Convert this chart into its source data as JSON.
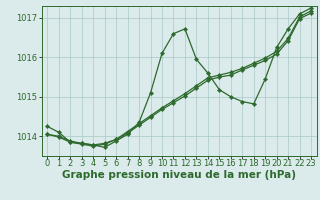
{
  "background_color": "#dbeaea",
  "grid_color": "#aac8c8",
  "line_color": "#2d6a2d",
  "marker_color": "#2d6a2d",
  "xlabel": "Graphe pression niveau de la mer (hPa)",
  "xlabel_fontsize": 7.5,
  "tick_fontsize": 6,
  "xlim": [
    -0.5,
    23.5
  ],
  "ylim": [
    1013.5,
    1017.3
  ],
  "yticks": [
    1014,
    1015,
    1016,
    1017
  ],
  "xticks": [
    0,
    1,
    2,
    3,
    4,
    5,
    6,
    7,
    8,
    9,
    10,
    11,
    12,
    13,
    14,
    15,
    16,
    17,
    18,
    19,
    20,
    21,
    22,
    23
  ],
  "series_wavy": {
    "x": [
      0,
      1,
      2,
      3,
      4,
      5,
      6,
      7,
      8,
      9,
      10,
      11,
      12,
      13,
      14,
      15,
      16,
      17,
      18,
      19,
      20,
      21,
      22,
      23
    ],
    "y": [
      1014.25,
      1014.1,
      1013.85,
      1013.82,
      1013.78,
      1013.72,
      1013.88,
      1014.05,
      1014.35,
      1015.1,
      1016.1,
      1016.6,
      1016.72,
      1015.95,
      1015.6,
      1015.18,
      1015.0,
      1014.88,
      1014.82,
      1015.45,
      1016.25,
      1016.72,
      1017.1,
      1017.25
    ]
  },
  "series_linear1": {
    "x": [
      0,
      1,
      2,
      3,
      4,
      5,
      6,
      7,
      8,
      9,
      10,
      11,
      12,
      13,
      14,
      15,
      16,
      17,
      18,
      19,
      20,
      21,
      22,
      23
    ],
    "y": [
      1014.05,
      1014.0,
      1013.88,
      1013.82,
      1013.78,
      1013.82,
      1013.92,
      1014.12,
      1014.32,
      1014.52,
      1014.72,
      1014.9,
      1015.08,
      1015.28,
      1015.48,
      1015.55,
      1015.62,
      1015.72,
      1015.85,
      1015.98,
      1016.15,
      1016.48,
      1017.02,
      1017.18
    ]
  },
  "series_linear2": {
    "x": [
      0,
      1,
      2,
      3,
      4,
      5,
      6,
      7,
      8,
      9,
      10,
      11,
      12,
      13,
      14,
      15,
      16,
      17,
      18,
      19,
      20,
      21,
      22,
      23
    ],
    "y": [
      1014.05,
      1013.98,
      1013.85,
      1013.8,
      1013.75,
      1013.8,
      1013.92,
      1014.08,
      1014.28,
      1014.48,
      1014.68,
      1014.85,
      1015.02,
      1015.22,
      1015.42,
      1015.5,
      1015.55,
      1015.68,
      1015.8,
      1015.92,
      1016.08,
      1016.42,
      1016.98,
      1017.12
    ]
  }
}
